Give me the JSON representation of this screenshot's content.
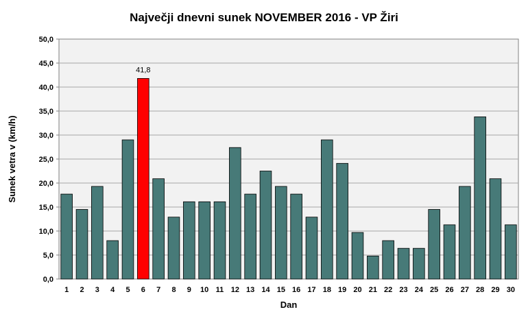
{
  "chart_data": {
    "type": "bar",
    "title": "Največji dnevni sunek NOVEMBER 2016 - VP Žiri",
    "xlabel": "Dan",
    "ylabel": "Sunek vetra  v (km/h)",
    "ylim": [
      0,
      50
    ],
    "ytick_step": 5,
    "ytick_labels": [
      "0,0",
      "5,0",
      "10,0",
      "15,0",
      "20,0",
      "25,0",
      "30,0",
      "35,0",
      "40,0",
      "45,0",
      "50,0"
    ],
    "grid": true,
    "categories": [
      "1",
      "2",
      "3",
      "4",
      "5",
      "6",
      "7",
      "8",
      "9",
      "10",
      "11",
      "12",
      "13",
      "14",
      "15",
      "16",
      "17",
      "18",
      "19",
      "20",
      "21",
      "22",
      "23",
      "24",
      "25",
      "26",
      "27",
      "28",
      "29",
      "30"
    ],
    "values": [
      17.7,
      14.5,
      19.3,
      8.0,
      29.0,
      41.8,
      20.9,
      12.9,
      16.1,
      16.1,
      16.1,
      27.4,
      17.7,
      22.5,
      19.3,
      17.7,
      12.9,
      29.0,
      24.1,
      9.7,
      4.8,
      8.0,
      6.4,
      6.4,
      14.5,
      11.3,
      19.3,
      33.8,
      20.9,
      11.3
    ],
    "highlight_index": 5,
    "highlight_label": "41,8",
    "colors": {
      "bar": "#477a78",
      "highlight": "#ff0000",
      "plot_bg": "#f2f2f2",
      "grid": "#a6a6a6",
      "border": "#808080"
    }
  }
}
